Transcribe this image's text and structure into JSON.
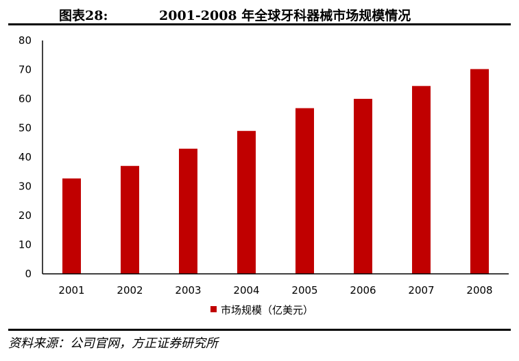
{
  "header": {
    "label": "图表28:",
    "title": "2001-2008 年全球牙科器械市场规模情况"
  },
  "source": "资料来源：公司官网，方正证券研究所",
  "colors": {
    "bar": "#c00000",
    "axis": "#000000"
  },
  "chart_data": {
    "type": "bar",
    "categories": [
      "2001",
      "2002",
      "2003",
      "2004",
      "2005",
      "2006",
      "2007",
      "2008"
    ],
    "series": [
      {
        "name": "市场规模（亿美元）",
        "values": [
          32.7,
          37.0,
          42.9,
          49.0,
          56.8,
          60.0,
          64.4,
          70.2
        ]
      }
    ],
    "ylim": [
      0,
      80
    ],
    "yticks": [
      0,
      10,
      20,
      30,
      40,
      50,
      60,
      70,
      80
    ],
    "grid": false,
    "legend_position": "bottom"
  }
}
